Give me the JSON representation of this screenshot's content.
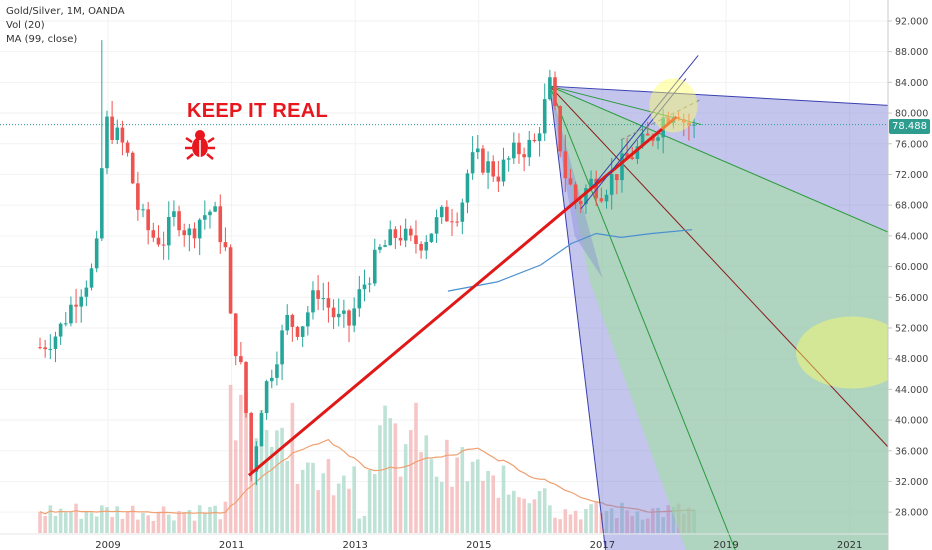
{
  "legend": {
    "symbol": "Gold/Silver, 1M, OANDA",
    "vol": "Vol (20)",
    "ma": "MA (99, close)"
  },
  "annotation": {
    "text": "KEEP IT REAL",
    "icon": "bug-icon"
  },
  "last_price_label": "78.488",
  "colors": {
    "up": "#26a69a",
    "down": "#ef5350",
    "trendline": "#e01818",
    "ma": "#4a8fd0",
    "vol_ma": "#f0a070",
    "fan_blue": "#7b7fd6",
    "fan_green": "#9fe09a",
    "highlight": "#ffff66"
  },
  "chart_data": {
    "type": "candlestick",
    "title": "Gold/Silver, 1M, OANDA",
    "xlabel": "",
    "ylabel": "",
    "x_tick_labels": [
      "2009",
      "2011",
      "2013",
      "2015",
      "2017",
      "2019",
      "2021"
    ],
    "y_tick_labels": [
      "28.000",
      "32.000",
      "36.000",
      "40.000",
      "44.000",
      "48.000",
      "52.000",
      "56.000",
      "60.000",
      "64.000",
      "68.000",
      "72.000",
      "76.000",
      "80.000",
      "84.000",
      "88.000",
      "92.000"
    ],
    "ylim": [
      26,
      94
    ],
    "last_price": 78.488,
    "close_series": [
      {
        "t": 2007.9,
        "v": 49.5
      },
      {
        "t": 2008.2,
        "v": 51.5
      },
      {
        "t": 2008.5,
        "v": 56.5
      },
      {
        "t": 2008.8,
        "v": 60.0
      },
      {
        "t": 2008.95,
        "v": 79.0
      },
      {
        "t": 2009.1,
        "v": 77.5
      },
      {
        "t": 2009.3,
        "v": 75.0
      },
      {
        "t": 2009.5,
        "v": 67.0
      },
      {
        "t": 2009.7,
        "v": 64.0
      },
      {
        "t": 2009.9,
        "v": 63.5
      },
      {
        "t": 2010.1,
        "v": 67.0
      },
      {
        "t": 2010.3,
        "v": 64.0
      },
      {
        "t": 2010.5,
        "v": 66.5
      },
      {
        "t": 2010.7,
        "v": 67.5
      },
      {
        "t": 2010.9,
        "v": 62.0
      },
      {
        "t": 2011.0,
        "v": 51.0
      },
      {
        "t": 2011.1,
        "v": 49.0
      },
      {
        "t": 2011.2,
        "v": 44.0
      },
      {
        "t": 2011.32,
        "v": 33.0
      },
      {
        "t": 2011.5,
        "v": 43.0
      },
      {
        "t": 2011.7,
        "v": 48.0
      },
      {
        "t": 2011.9,
        "v": 53.0
      },
      {
        "t": 2012.1,
        "v": 52.0
      },
      {
        "t": 2012.4,
        "v": 57.0
      },
      {
        "t": 2012.7,
        "v": 53.0
      },
      {
        "t": 2012.9,
        "v": 52.5
      },
      {
        "t": 2013.1,
        "v": 57.0
      },
      {
        "t": 2013.4,
        "v": 62.0
      },
      {
        "t": 2013.7,
        "v": 64.5
      },
      {
        "t": 2013.9,
        "v": 63.0
      },
      {
        "t": 2014.1,
        "v": 63.5
      },
      {
        "t": 2014.4,
        "v": 66.5
      },
      {
        "t": 2014.7,
        "v": 67.5
      },
      {
        "t": 2014.85,
        "v": 73.5
      },
      {
        "t": 2015.0,
        "v": 74.0
      },
      {
        "t": 2015.3,
        "v": 72.0
      },
      {
        "t": 2015.6,
        "v": 75.0
      },
      {
        "t": 2015.9,
        "v": 76.0
      },
      {
        "t": 2016.15,
        "v": 83.5
      },
      {
        "t": 2016.4,
        "v": 72.0
      },
      {
        "t": 2016.6,
        "v": 68.0
      },
      {
        "t": 2016.8,
        "v": 71.0
      },
      {
        "t": 2017.0,
        "v": 70.0
      },
      {
        "t": 2017.2,
        "v": 72.0
      },
      {
        "t": 2017.4,
        "v": 74.0
      },
      {
        "t": 2017.6,
        "v": 75.5
      },
      {
        "t": 2017.8,
        "v": 77.0
      },
      {
        "t": 2018.0,
        "v": 79.5
      },
      {
        "t": 2018.2,
        "v": 81.0
      },
      {
        "t": 2018.35,
        "v": 78.5
      },
      {
        "t": 2018.45,
        "v": 78.5
      }
    ],
    "volume_ma_label": "Vol (20)",
    "ma_label": "MA (99, close)"
  }
}
